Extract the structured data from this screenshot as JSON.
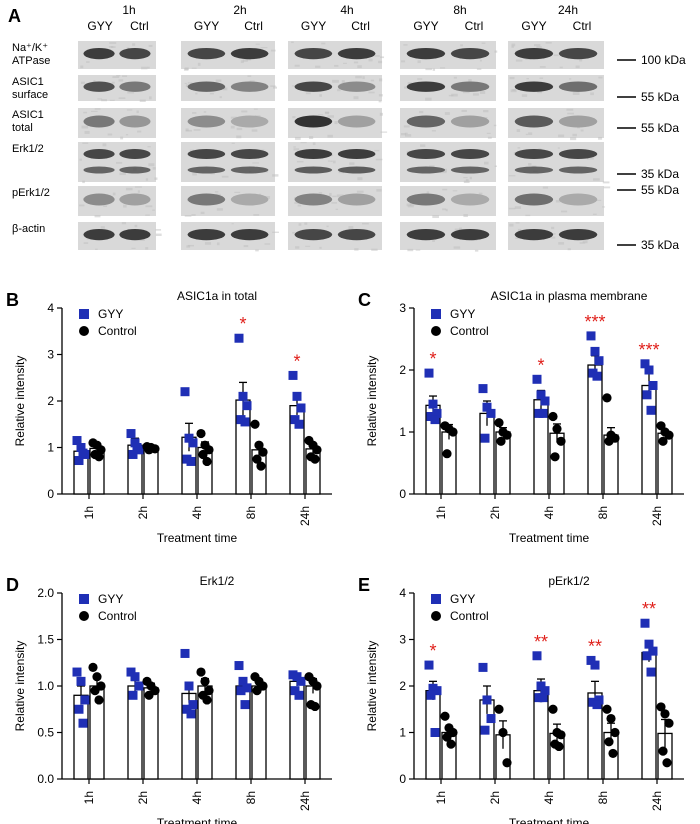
{
  "blot": {
    "panel_label": "A",
    "timepoints": [
      {
        "time": "1h",
        "lanes": [
          "GYY",
          "Ctrl"
        ]
      },
      {
        "time": "2h",
        "lanes": [
          "GYY",
          "Ctrl"
        ]
      },
      {
        "time": "4h",
        "lanes": [
          "GYY",
          "Ctrl"
        ]
      },
      {
        "time": "8h",
        "lanes": [
          "GYY",
          "Ctrl"
        ]
      },
      {
        "time": "24h",
        "lanes": [
          "GYY",
          "Ctrl"
        ]
      }
    ],
    "rows": [
      {
        "label_lines": [
          "Na⁺/K⁺",
          "ATPase"
        ],
        "markers": [
          "100 kDa"
        ]
      },
      {
        "label_lines": [
          "ASIC1",
          "surface"
        ],
        "markers": [
          "55 kDa"
        ]
      },
      {
        "label_lines": [
          "ASIC1",
          "total"
        ],
        "markers": [
          "55 kDa"
        ]
      },
      {
        "label_lines": [
          "Erk1/2"
        ],
        "markers": [
          "35 kDa"
        ]
      },
      {
        "label_lines": [
          "pErk1/2"
        ],
        "markers": [
          "55 kDa"
        ]
      },
      {
        "label_lines": [
          "β-actin"
        ],
        "markers": [
          "35 kDa"
        ]
      }
    ]
  },
  "chart_data": [
    {
      "panel": "B",
      "type": "bar",
      "title": "ASIC1a in total",
      "xlabel": "Treatment time",
      "ylabel": "Relative intensity",
      "ylim": [
        0,
        4
      ],
      "yticks": [
        "0",
        "1",
        "2",
        "3",
        "4"
      ],
      "categories": [
        "1h",
        "2h",
        "4h",
        "8h",
        "24h"
      ],
      "legend": [
        "GYY",
        "Control"
      ],
      "legend_position": "top-left",
      "series": [
        {
          "name": "GYY",
          "color": "#1f2fb5",
          "marker": "square",
          "means": [
            0.92,
            1.05,
            1.22,
            2.02,
            1.9
          ],
          "sem": [
            0.12,
            0.15,
            0.3,
            0.38,
            0.2
          ],
          "points": [
            [
              1.15,
              1.0,
              0.85,
              0.72,
              0.88
            ],
            [
              1.3,
              1.1,
              0.95,
              0.85,
              1.0
            ],
            [
              2.2,
              1.2,
              1.1,
              0.75,
              0.7
            ],
            [
              3.35,
              2.1,
              1.9,
              1.6,
              1.55
            ],
            [
              2.55,
              2.1,
              1.85,
              1.6,
              1.5
            ]
          ]
        },
        {
          "name": "Control",
          "color": "#000000",
          "marker": "circle",
          "means": [
            0.98,
            0.98,
            1.0,
            0.95,
            0.97
          ],
          "sem": [
            0.08,
            0.03,
            0.12,
            0.12,
            0.1
          ],
          "points": [
            [
              1.1,
              1.05,
              0.95,
              0.85,
              0.8
            ],
            [
              1.02,
              1.0,
              0.97,
              0.95
            ],
            [
              1.3,
              1.05,
              0.95,
              0.85,
              0.7
            ],
            [
              1.5,
              1.05,
              0.9,
              0.75,
              0.6
            ],
            [
              1.15,
              1.05,
              0.95,
              0.8,
              0.75
            ]
          ]
        }
      ],
      "annotations": [
        {
          "category": "8h",
          "text": "*"
        },
        {
          "category": "24h",
          "text": "*"
        }
      ]
    },
    {
      "panel": "C",
      "type": "bar",
      "title": "ASIC1a in plasma membrane",
      "xlabel": "Treatment time",
      "ylabel": "Relative intensity",
      "ylim": [
        0,
        3
      ],
      "yticks": [
        "0",
        "1",
        "2",
        "3"
      ],
      "categories": [
        "1h",
        "2h",
        "4h",
        "8h",
        "24h"
      ],
      "legend": [
        "GYY",
        "Control"
      ],
      "legend_position": "top-left",
      "series": [
        {
          "name": "GYY",
          "color": "#1f2fb5",
          "marker": "square",
          "means": [
            1.43,
            1.3,
            1.52,
            2.08,
            1.75
          ],
          "sem": [
            0.15,
            0.2,
            0.15,
            0.15,
            0.2
          ],
          "points": [
            [
              1.95,
              1.45,
              1.3,
              1.25,
              1.2
            ],
            [
              1.7,
              1.4,
              1.3,
              0.9
            ],
            [
              1.85,
              1.6,
              1.5,
              1.3,
              1.3
            ],
            [
              2.55,
              2.3,
              2.15,
              1.95,
              1.9
            ],
            [
              2.1,
              2.0,
              1.75,
              1.6,
              1.35
            ]
          ]
        },
        {
          "name": "Control",
          "color": "#000000",
          "marker": "circle",
          "means": [
            1.0,
            1.0,
            0.98,
            0.95,
            0.98
          ],
          "sem": [
            0.12,
            0.07,
            0.15,
            0.12,
            0.05
          ],
          "points": [
            [
              1.1,
              1.05,
              1.0,
              0.65
            ],
            [
              1.15,
              1.0,
              0.95,
              0.85
            ],
            [
              1.25,
              1.05,
              0.85,
              0.6
            ],
            [
              1.55,
              0.95,
              0.9,
              0.85
            ],
            [
              1.1,
              1.0,
              0.95,
              0.85
            ]
          ]
        }
      ],
      "annotations": [
        {
          "category": "1h",
          "text": "*"
        },
        {
          "category": "4h",
          "text": "*"
        },
        {
          "category": "8h",
          "text": "***"
        },
        {
          "category": "24h",
          "text": "***"
        }
      ]
    },
    {
      "panel": "D",
      "type": "bar",
      "title": "Erk1/2",
      "xlabel": "Treatment time",
      "ylabel": "Relative intensity",
      "ylim": [
        0,
        2
      ],
      "yticks": [
        "0.0",
        "0.5",
        "1.0",
        "1.5",
        "2.0"
      ],
      "categories": [
        "1h",
        "2h",
        "4h",
        "8h",
        "24h"
      ],
      "legend": [
        "GYY",
        "Control"
      ],
      "legend_position": "top-left",
      "series": [
        {
          "name": "GYY",
          "color": "#1f2fb5",
          "marker": "square",
          "means": [
            0.9,
            1.0,
            0.92,
            1.0,
            1.05
          ],
          "sem": [
            0.1,
            0.06,
            0.1,
            0.07,
            0.05
          ],
          "points": [
            [
              1.15,
              1.05,
              0.85,
              0.75,
              0.6
            ],
            [
              1.15,
              1.1,
              1.0,
              0.9
            ],
            [
              1.35,
              1.0,
              0.8,
              0.75,
              0.7
            ],
            [
              1.22,
              1.05,
              0.98,
              0.95,
              0.8
            ],
            [
              1.12,
              1.1,
              1.05,
              0.95,
              0.9
            ]
          ]
        },
        {
          "name": "Control",
          "color": "#000000",
          "marker": "circle",
          "means": [
            1.0,
            0.98,
            1.0,
            1.0,
            1.0
          ],
          "sem": [
            0.08,
            0.05,
            0.08,
            0.05,
            0.08
          ],
          "points": [
            [
              1.2,
              1.1,
              1.0,
              0.95,
              0.85
            ],
            [
              1.05,
              1.0,
              0.95,
              0.9
            ],
            [
              1.15,
              1.05,
              0.95,
              0.9,
              0.85
            ],
            [
              1.1,
              1.05,
              1.0,
              0.95
            ],
            [
              1.1,
              1.05,
              1.0,
              0.8,
              0.78
            ]
          ]
        }
      ],
      "annotations": []
    },
    {
      "panel": "E",
      "type": "bar",
      "title": "pErk1/2",
      "xlabel": "Treatment time",
      "ylabel": "Relative intensity",
      "ylim": [
        0,
        4
      ],
      "yticks": [
        "0",
        "1",
        "2",
        "3",
        "4"
      ],
      "categories": [
        "1h",
        "2h",
        "4h",
        "8h",
        "24h"
      ],
      "legend": [
        "GYY",
        "Control"
      ],
      "legend_position": "top-left",
      "series": [
        {
          "name": "GYY",
          "color": "#1f2fb5",
          "marker": "square",
          "means": [
            1.9,
            1.7,
            1.9,
            1.85,
            2.72
          ],
          "sem": [
            0.2,
            0.3,
            0.25,
            0.25,
            0.2
          ],
          "points": [
            [
              2.45,
              1.95,
              1.9,
              1.8,
              1.0
            ],
            [
              2.4,
              1.7,
              1.3,
              1.05
            ],
            [
              2.65,
              2.0,
              1.9,
              1.75,
              1.75
            ],
            [
              2.55,
              2.45,
              1.7,
              1.65,
              1.6
            ],
            [
              3.35,
              2.9,
              2.75,
              2.65,
              2.3
            ]
          ]
        },
        {
          "name": "Control",
          "color": "#000000",
          "marker": "circle",
          "means": [
            1.0,
            0.95,
            0.98,
            1.0,
            0.98
          ],
          "sem": [
            0.12,
            0.3,
            0.2,
            0.2,
            0.3
          ],
          "points": [
            [
              1.35,
              1.1,
              1.0,
              0.9,
              0.75
            ],
            [
              1.5,
              1.0,
              0.35
            ],
            [
              1.5,
              1.0,
              0.95,
              0.75,
              0.7
            ],
            [
              1.5,
              1.3,
              1.0,
              0.8,
              0.55
            ],
            [
              1.55,
              1.4,
              1.2,
              0.6,
              0.35
            ]
          ]
        }
      ],
      "annotations": [
        {
          "category": "1h",
          "text": "*"
        },
        {
          "category": "4h",
          "text": "**"
        },
        {
          "category": "8h",
          "text": "**"
        },
        {
          "category": "24h",
          "text": "**"
        }
      ]
    }
  ]
}
